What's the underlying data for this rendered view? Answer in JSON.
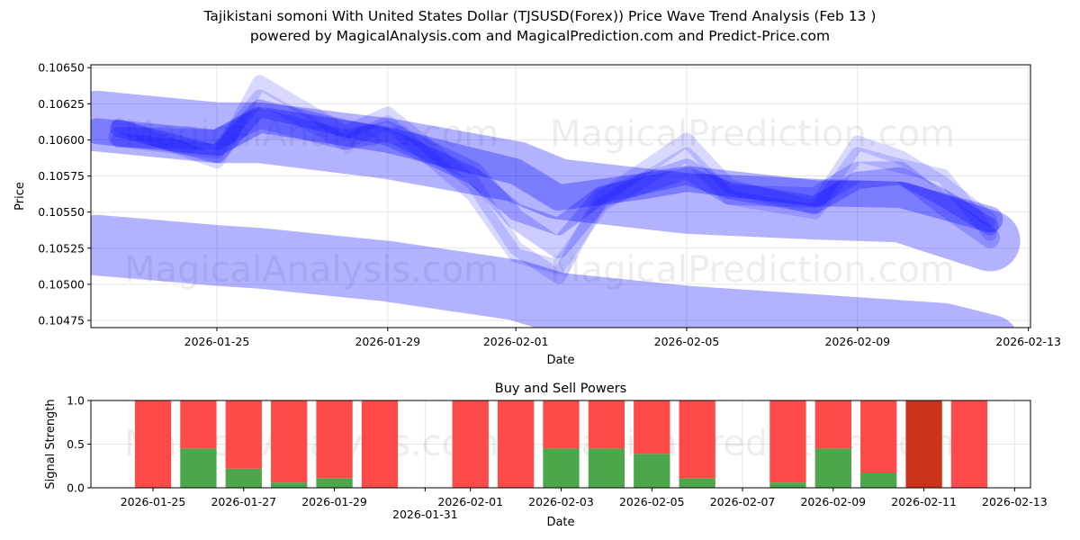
{
  "title_line1": "Tajikistani somoni With United States Dollar (TJSUSD(Forex)) Price Wave Trend Analysis (Feb 13 )",
  "title_line2": "powered by MagicalAnalysis.com and MagicalPrediction.com and Predict-Price.com",
  "watermarks": [
    "MagicalAnalysis.com",
    "MagicalPrediction.com"
  ],
  "chart_data": [
    {
      "type": "line",
      "title": "",
      "xlabel": "Date",
      "ylabel": "Price",
      "x_origin_date": "2026-01-25",
      "xlim_days": [
        -2.95,
        19.05
      ],
      "ylim": [
        0.1047,
        0.10652
      ],
      "x_ticks": [
        {
          "day": 0,
          "label": "2026-01-25"
        },
        {
          "day": 4,
          "label": "2026-01-29"
        },
        {
          "day": 7,
          "label": "2026-02-01"
        },
        {
          "day": 11,
          "label": "2026-02-05"
        },
        {
          "day": 15,
          "label": "2026-02-09"
        },
        {
          "day": 19,
          "label": "2026-02-13"
        }
      ],
      "y_ticks": [
        "0.10475",
        "0.10500",
        "0.10525",
        "0.10550",
        "0.10575",
        "0.10600",
        "0.10625",
        "0.10650"
      ],
      "grid": true,
      "color": "#0000ff",
      "series": [
        {
          "name": "lower-band",
          "alpha": 0.3,
          "width": 0.00042,
          "points": [
            [
              -2.8,
              0.10527
            ],
            [
              0,
              0.1052
            ],
            [
              1,
              0.10518
            ],
            [
              4,
              0.10509
            ],
            [
              7,
              0.10496
            ],
            [
              8,
              0.10487
            ],
            [
              11,
              0.10478
            ],
            [
              14,
              0.10472
            ],
            [
              17,
              0.10466
            ],
            [
              18.1,
              0.10458
            ]
          ]
        },
        {
          "name": "upper-band",
          "alpha": 0.3,
          "width": 0.00042,
          "points": [
            [
              -2.8,
              0.10613
            ],
            [
              0,
              0.10605
            ],
            [
              1,
              0.10605
            ],
            [
              4,
              0.10594
            ],
            [
              7,
              0.10578
            ],
            [
              8,
              0.10566
            ],
            [
              11,
              0.10556
            ],
            [
              14,
              0.10552
            ],
            [
              16,
              0.1055
            ],
            [
              18.1,
              0.1053
            ]
          ]
        },
        {
          "name": "wave-1",
          "alpha": 0.3,
          "width": 0.00018,
          "points": [
            [
              -2.8,
              0.10606
            ],
            [
              0,
              0.10598
            ],
            [
              1,
              0.10614
            ],
            [
              4,
              0.106
            ],
            [
              7,
              0.10578
            ],
            [
              8,
              0.1056
            ],
            [
              10,
              0.10568
            ],
            [
              11,
              0.10573
            ],
            [
              14,
              0.10563
            ],
            [
              16,
              0.10562
            ],
            [
              18.1,
              0.10545
            ]
          ]
        },
        {
          "name": "wave-2",
          "alpha": 0.25,
          "width": 0.00012,
          "points": [
            [
              -2.3,
              0.10608
            ],
            [
              0,
              0.1059
            ],
            [
              1,
              0.10622
            ],
            [
              3,
              0.10608
            ],
            [
              4,
              0.10602
            ],
            [
              6,
              0.10575
            ],
            [
              7,
              0.1055
            ],
            [
              8,
              0.1054
            ],
            [
              9,
              0.10562
            ],
            [
              11,
              0.10575
            ],
            [
              12,
              0.10565
            ],
            [
              14,
              0.10555
            ],
            [
              15,
              0.10572
            ],
            [
              16,
              0.10575
            ],
            [
              17,
              0.1056
            ],
            [
              18.1,
              0.1054
            ]
          ]
        },
        {
          "name": "wave-3",
          "alpha": 0.15,
          "width": 0.0001,
          "points": [
            [
              -2.3,
              0.1061
            ],
            [
              0,
              0.10585
            ],
            [
              1,
              0.1064
            ],
            [
              3,
              0.10605
            ],
            [
              4,
              0.10618
            ],
            [
              6,
              0.1057
            ],
            [
              7,
              0.10525
            ],
            [
              8,
              0.10505
            ],
            [
              9,
              0.1056
            ],
            [
              11,
              0.106
            ],
            [
              12,
              0.10568
            ],
            [
              14,
              0.10553
            ],
            [
              15,
              0.10598
            ],
            [
              16,
              0.10588
            ],
            [
              17,
              0.1057
            ],
            [
              18.1,
              0.10545
            ]
          ]
        },
        {
          "name": "wave-4",
          "alpha": 0.15,
          "width": 0.0001,
          "points": [
            [
              -2.3,
              0.106
            ],
            [
              0,
              0.10592
            ],
            [
              1,
              0.1063
            ],
            [
              3,
              0.10598
            ],
            [
              4,
              0.10612
            ],
            [
              6,
              0.10562
            ],
            [
              7,
              0.1052
            ],
            [
              8,
              0.10512
            ],
            [
              9,
              0.10555
            ],
            [
              11,
              0.1059
            ],
            [
              12,
              0.1056
            ],
            [
              14,
              0.1055
            ],
            [
              15,
              0.1059
            ],
            [
              16,
              0.10582
            ],
            [
              17,
              0.10575
            ],
            [
              18.1,
              0.10535
            ]
          ]
        },
        {
          "name": "wave-5",
          "alpha": 0.2,
          "width": 0.00014,
          "points": [
            [
              -2.3,
              0.10602
            ],
            [
              0,
              0.106
            ],
            [
              1,
              0.10615
            ],
            [
              3,
              0.106
            ],
            [
              4,
              0.10606
            ],
            [
              6,
              0.10578
            ],
            [
              7,
              0.10545
            ],
            [
              8,
              0.10525
            ],
            [
              9,
              0.1056
            ],
            [
              11,
              0.1058
            ],
            [
              12,
              0.10562
            ],
            [
              14,
              0.1056
            ],
            [
              15,
              0.10578
            ],
            [
              16,
              0.10578
            ],
            [
              17,
              0.10555
            ],
            [
              18.1,
              0.10532
            ]
          ]
        }
      ]
    },
    {
      "type": "bar",
      "title": "Buy and Sell Powers",
      "xlabel": "Date",
      "ylabel": "Signal Strength",
      "ylim": [
        0,
        1
      ],
      "x_origin_date": "2026-01-25",
      "xlim_days": [
        -1.37,
        19.35
      ],
      "y_ticks": [
        "0.0",
        "0.5",
        "1.0"
      ],
      "x_ticks": [
        {
          "day": 0,
          "label": "2026-01-25"
        },
        {
          "day": 2,
          "label": "2026-01-27"
        },
        {
          "day": 4,
          "label": "2026-01-29"
        },
        {
          "day": 6,
          "label": "2026-01-31"
        },
        {
          "day": 7,
          "label": "2026-02-01"
        },
        {
          "day": 9,
          "label": "2026-02-03"
        },
        {
          "day": 11,
          "label": "2026-02-05"
        },
        {
          "day": 13,
          "label": "2026-02-07"
        },
        {
          "day": 15,
          "label": "2026-02-09"
        },
        {
          "day": 17,
          "label": "2026-02-11"
        },
        {
          "day": 19,
          "label": "2026-02-13"
        }
      ],
      "colors": {
        "buy": "#4ca64c",
        "sell": "#ff4a4a",
        "strong_sell": "#cc3319"
      },
      "bars": [
        {
          "date": "2026-01-25",
          "day": 0,
          "buy": 0.0,
          "sell": 1.0
        },
        {
          "date": "2026-01-26",
          "day": 1,
          "buy": 0.45,
          "sell": 0.55
        },
        {
          "date": "2026-01-27",
          "day": 2,
          "buy": 0.22,
          "sell": 0.78
        },
        {
          "date": "2026-01-28",
          "day": 3,
          "buy": 0.06,
          "sell": 0.94
        },
        {
          "date": "2026-01-29",
          "day": 4,
          "buy": 0.11,
          "sell": 0.89
        },
        {
          "date": "2026-01-30",
          "day": 5,
          "buy": 0.0,
          "sell": 1.0
        },
        {
          "date": "2026-02-01",
          "day": 7,
          "buy": 0.0,
          "sell": 1.0
        },
        {
          "date": "2026-02-02",
          "day": 8,
          "buy": 0.0,
          "sell": 1.0
        },
        {
          "date": "2026-02-03",
          "day": 9,
          "buy": 0.45,
          "sell": 0.55
        },
        {
          "date": "2026-02-04",
          "day": 10,
          "buy": 0.45,
          "sell": 0.55
        },
        {
          "date": "2026-02-05",
          "day": 11,
          "buy": 0.39,
          "sell": 0.61
        },
        {
          "date": "2026-02-06",
          "day": 12,
          "buy": 0.11,
          "sell": 0.89
        },
        {
          "date": "2026-02-08",
          "day": 14,
          "buy": 0.06,
          "sell": 0.94
        },
        {
          "date": "2026-02-09",
          "day": 15,
          "buy": 0.45,
          "sell": 0.55
        },
        {
          "date": "2026-02-10",
          "day": 16,
          "buy": 0.17,
          "sell": 0.83
        },
        {
          "date": "2026-02-11",
          "day": 17,
          "buy": 0.0,
          "sell": 1.0,
          "strong": true
        },
        {
          "date": "2026-02-12",
          "day": 18,
          "buy": 0.0,
          "sell": 1.0
        }
      ]
    }
  ]
}
